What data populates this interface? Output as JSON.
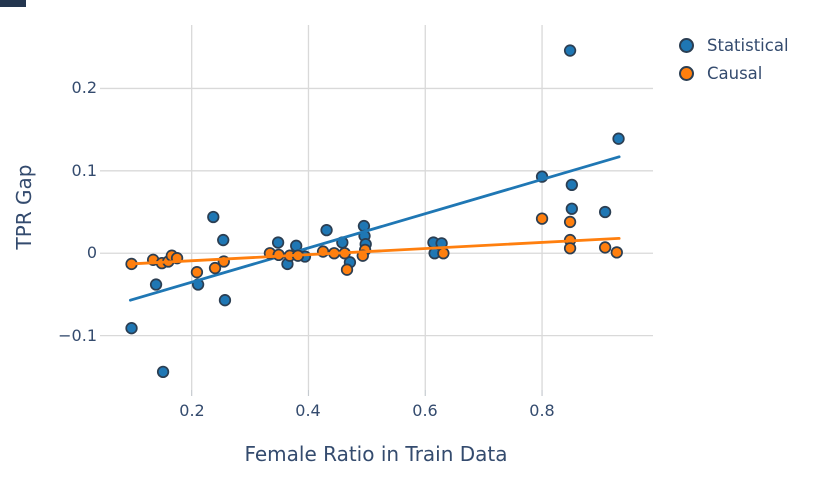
{
  "chart_data": {
    "type": "scatter",
    "title": "",
    "xlabel": "Female Ratio in Train Data",
    "ylabel": "TPR Gap",
    "xlim": [
      0.043,
      0.99
    ],
    "ylim": [
      -0.166,
      0.277
    ],
    "x_ticks": [
      0.2,
      0.4,
      0.6,
      0.8
    ],
    "y_ticks": [
      -0.1,
      0,
      0.1,
      0.2
    ],
    "x_tick_labels": [
      "0.2",
      "0.4",
      "0.6",
      "0.8"
    ],
    "y_tick_labels": [
      "−0.1",
      "0",
      "0.1",
      "0.2"
    ],
    "grid": true,
    "legend_position": "outside upper right",
    "colors": {
      "grid": "#d9d9d9",
      "tick": "#c5cacf",
      "text": "#344b6e",
      "marker_edge": "#2b3e52"
    },
    "series": [
      {
        "name": "Statistical",
        "color": "#1f77b4",
        "points": [
          [
            0.097,
            -0.091
          ],
          [
            0.139,
            -0.038
          ],
          [
            0.151,
            -0.144
          ],
          [
            0.211,
            -0.038
          ],
          [
            0.237,
            0.044
          ],
          [
            0.254,
            0.016
          ],
          [
            0.257,
            -0.057
          ],
          [
            0.348,
            0.013
          ],
          [
            0.364,
            -0.013
          ],
          [
            0.379,
            0.009
          ],
          [
            0.394,
            -0.004
          ],
          [
            0.431,
            0.028
          ],
          [
            0.458,
            0.013
          ],
          [
            0.471,
            -0.011
          ],
          [
            0.495,
            0.033
          ],
          [
            0.496,
            0.021
          ],
          [
            0.498,
            0.011
          ],
          [
            0.614,
            0.013
          ],
          [
            0.628,
            0.012
          ],
          [
            0.616,
            0.0
          ],
          [
            0.8,
            0.093
          ],
          [
            0.848,
            0.246
          ],
          [
            0.851,
            0.083
          ],
          [
            0.851,
            0.054
          ],
          [
            0.908,
            0.05
          ],
          [
            0.931,
            0.139
          ]
        ],
        "trend": {
          "x1": 0.095,
          "y1": -0.057,
          "x2": 0.932,
          "y2": 0.117
        }
      },
      {
        "name": "Causal",
        "color": "#ff7f0e",
        "points": [
          [
            0.097,
            -0.013
          ],
          [
            0.134,
            -0.008
          ],
          [
            0.149,
            -0.012
          ],
          [
            0.16,
            -0.01
          ],
          [
            0.166,
            -0.003
          ],
          [
            0.175,
            -0.006
          ],
          [
            0.209,
            -0.023
          ],
          [
            0.24,
            -0.018
          ],
          [
            0.255,
            -0.01
          ],
          [
            0.334,
            0.0
          ],
          [
            0.349,
            -0.002
          ],
          [
            0.368,
            -0.003
          ],
          [
            0.382,
            -0.003
          ],
          [
            0.425,
            0.002
          ],
          [
            0.444,
            0.0
          ],
          [
            0.462,
            0.0
          ],
          [
            0.466,
            -0.02
          ],
          [
            0.497,
            0.004
          ],
          [
            0.493,
            -0.003
          ],
          [
            0.631,
            0.0
          ],
          [
            0.8,
            0.042
          ],
          [
            0.848,
            0.038
          ],
          [
            0.848,
            0.016
          ],
          [
            0.848,
            0.006
          ],
          [
            0.908,
            0.007
          ],
          [
            0.928,
            0.001
          ]
        ],
        "trend": {
          "x1": 0.095,
          "y1": -0.013,
          "x2": 0.932,
          "y2": 0.018
        }
      }
    ]
  }
}
